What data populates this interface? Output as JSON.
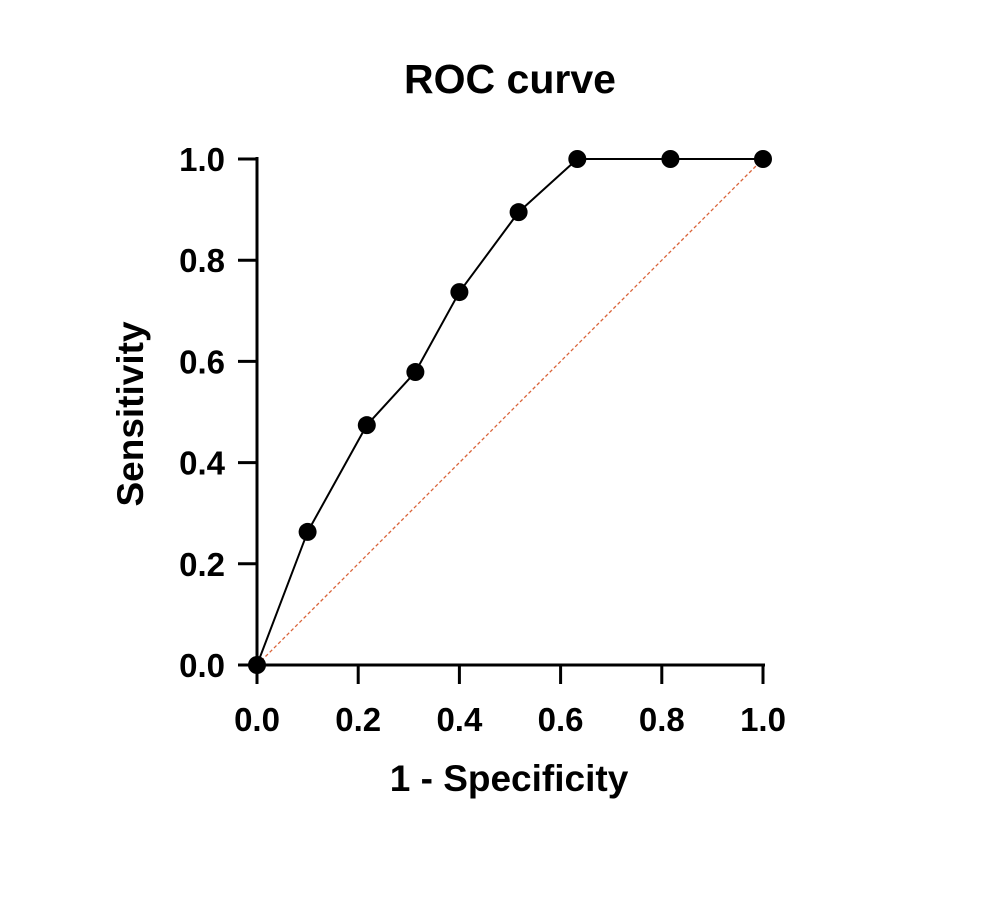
{
  "chart_data": {
    "type": "line",
    "title": "ROC curve",
    "xlabel": "1 - Specificity",
    "ylabel": "Sensitivity",
    "xlim": [
      0,
      1
    ],
    "ylim": [
      0,
      1
    ],
    "x_ticks": [
      "0.0",
      "0.2",
      "0.4",
      "0.6",
      "0.8",
      "1.0"
    ],
    "y_ticks": [
      "0.0",
      "0.2",
      "0.4",
      "0.6",
      "0.8",
      "1.0"
    ],
    "grid": false,
    "legend": "none",
    "series": [
      {
        "points": [
          {
            "x": 0.0,
            "y": 0.0
          },
          {
            "x": 0.1,
            "y": 0.263
          },
          {
            "x": 0.217,
            "y": 0.474
          },
          {
            "x": 0.313,
            "y": 0.579
          },
          {
            "x": 0.4,
            "y": 0.737
          },
          {
            "x": 0.517,
            "y": 0.895
          },
          {
            "x": 0.633,
            "y": 1.0
          },
          {
            "x": 0.817,
            "y": 1.0
          },
          {
            "x": 1.0,
            "y": 1.0
          }
        ],
        "color": "#000000",
        "marker": "filled-circle"
      }
    ],
    "reference_line": {
      "from": {
        "x": 0,
        "y": 0
      },
      "to": {
        "x": 1,
        "y": 1
      },
      "color": "#d9643a",
      "style": "dashed"
    }
  }
}
